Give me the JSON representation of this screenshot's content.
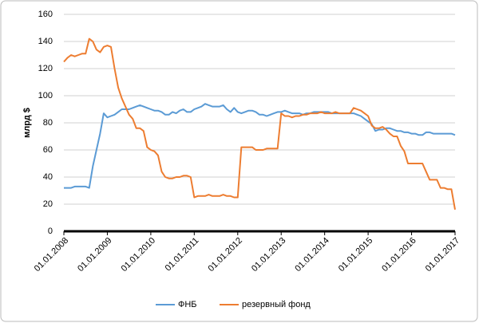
{
  "chart_data": {
    "type": "line",
    "y_label": "млрд $",
    "categories": [
      "01.01.2008",
      null,
      null,
      null,
      null,
      null,
      null,
      null,
      null,
      null,
      null,
      null,
      "01.01.2009",
      null,
      null,
      null,
      null,
      null,
      null,
      null,
      null,
      null,
      null,
      null,
      "01.01.2010",
      null,
      null,
      null,
      null,
      null,
      null,
      null,
      null,
      null,
      null,
      null,
      "01.01.2011",
      null,
      null,
      null,
      null,
      null,
      null,
      null,
      null,
      null,
      null,
      null,
      "01.01.2012",
      null,
      null,
      null,
      null,
      null,
      null,
      null,
      null,
      null,
      null,
      null,
      "01.01.2013",
      null,
      null,
      null,
      null,
      null,
      null,
      null,
      null,
      null,
      null,
      null,
      "01.01.2014",
      null,
      null,
      null,
      null,
      null,
      null,
      null,
      null,
      null,
      null,
      null,
      "01.01.2015",
      null,
      null,
      null,
      null,
      null,
      null,
      null,
      null,
      null,
      null,
      null,
      "01.01.2016",
      null,
      null,
      null,
      null,
      null,
      null,
      null,
      null,
      null,
      null,
      null,
      "01.01.2017"
    ],
    "series": [
      {
        "name": "ФНБ",
        "color": "#5b9bd5",
        "values": [
          32,
          32,
          32,
          33,
          33,
          33,
          33,
          32,
          48,
          60,
          72,
          87,
          84,
          85,
          86,
          88,
          90,
          90,
          90,
          91,
          92,
          93,
          92,
          91,
          90,
          89,
          89,
          88,
          86,
          86,
          88,
          87,
          89,
          90,
          88,
          88,
          90,
          91,
          92,
          94,
          93,
          92,
          92,
          92,
          93,
          90,
          88,
          91,
          88,
          87,
          88,
          89,
          89,
          88,
          86,
          86,
          85,
          86,
          87,
          88,
          88,
          89,
          88,
          87,
          87,
          87,
          86,
          87,
          87,
          88,
          88,
          88,
          88,
          88,
          87,
          87,
          87,
          87,
          87,
          87,
          87,
          86,
          85,
          83,
          81,
          79,
          74,
          75,
          75,
          76,
          76,
          75,
          74,
          74,
          73,
          73,
          72,
          72,
          71,
          71,
          73,
          73,
          72,
          72,
          72,
          72,
          72,
          72,
          71
        ]
      },
      {
        "name": "резервный фонд",
        "color": "#ed7d31",
        "values": [
          125,
          128,
          130,
          129,
          130,
          131,
          131,
          142,
          140,
          134,
          132,
          136,
          137,
          136,
          120,
          106,
          98,
          92,
          86,
          83,
          76,
          76,
          74,
          62,
          60,
          59,
          56,
          44,
          40,
          39,
          39,
          40,
          40,
          41,
          41,
          40,
          25,
          26,
          26,
          26,
          27,
          26,
          26,
          26,
          27,
          26,
          26,
          25,
          25,
          62,
          62,
          62,
          62,
          60,
          60,
          60,
          61,
          61,
          61,
          61,
          87,
          85,
          85,
          84,
          85,
          85,
          86,
          86,
          87,
          87,
          87,
          88,
          87,
          87,
          87,
          88,
          87,
          87,
          87,
          87,
          91,
          90,
          89,
          87,
          85,
          78,
          76,
          76,
          77,
          75,
          72,
          70,
          70,
          63,
          59,
          50,
          50,
          50,
          50,
          50,
          44,
          38,
          38,
          38,
          32,
          32,
          31,
          31,
          16
        ]
      }
    ],
    "ylim": [
      0,
      160
    ],
    "yticks": [
      0,
      20,
      40,
      60,
      80,
      100,
      120,
      140,
      160
    ],
    "grid": true,
    "legend": "bottom"
  }
}
